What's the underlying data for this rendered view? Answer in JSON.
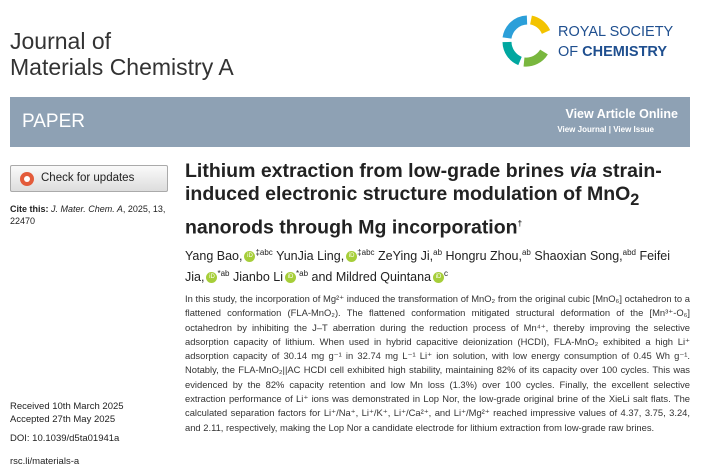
{
  "header": {
    "journal_line1": "Journal of",
    "journal_line2": "Materials Chemistry A",
    "publisher_line1": "ROYAL SOCIETY",
    "publisher_of": "OF",
    "publisher_chem": "CHEMISTRY"
  },
  "banner": {
    "section": "PAPER",
    "view_article": "View Article Online",
    "view_journal": "View Journal",
    "separator": "|",
    "view_issue": "View Issue"
  },
  "sidebar": {
    "check_updates": "Check for updates",
    "cite_label": "Cite this:",
    "cite_journal": "J. Mater. Chem. A",
    "cite_rest": ", 2025, 13, 22470",
    "received": "Received 10th March 2025",
    "accepted": "Accepted 27th May 2025",
    "doi": "DOI: 10.1039/d5ta01941a",
    "link": "rsc.li/materials-a"
  },
  "article": {
    "title": [
      "Lithium extraction from low-grade brines ",
      "via",
      " strain-induced electronic structure modulation of MnO",
      "2",
      " nanorods through Mg incorporation",
      "†"
    ],
    "authors": [
      {
        "name": "Yang Bao,",
        "orcid": "iD",
        "affil": "‡abc"
      },
      {
        "name": "YunJia Ling,",
        "orcid": "iD",
        "affil": "‡abc"
      },
      {
        "name": "ZeYing Ji,",
        "affil": "ab"
      },
      {
        "name": "Hongru Zhou,",
        "affil": "ab"
      },
      {
        "name": "Shaoxian Song,",
        "affil": "abd"
      },
      {
        "name": "Feifei Jia,",
        "orcid": "iD",
        "affil": "*ab"
      },
      {
        "name": "Jianbo Li",
        "orcid": "iD",
        "affil": "*ab"
      },
      {
        "name": "and Mildred Quintana",
        "orcid": "iD",
        "affil": "c"
      }
    ],
    "abstract": "In this study, the incorporation of Mg²⁺ induced the transformation of MnO₂ from the original cubic [MnO₆] octahedron to a flattened conformation (FLA-MnO₂). The flattened conformation mitigated structural deformation of the [Mn³⁺-O₆] octahedron by inhibiting the J–T aberration during the reduction process of Mn⁴⁺, thereby improving the selective adsorption capacity of lithium. When used in hybrid capacitive deionization (HCDI), FLA-MnO₂ exhibited a high Li⁺ adsorption capacity of 30.14 mg g⁻¹ in 32.74 mg L⁻¹ Li⁺ ion solution, with low energy consumption of 0.45 Wh g⁻¹. Notably, the FLA-MnO₂||AC HCDI cell exhibited high stability, maintaining 82% of its capacity over 100 cycles. This was evidenced by the 82% capacity retention and low Mn loss (1.3%) over 100 cycles. Finally, the excellent selective extraction performance of Li⁺ ions was demonstrated in Lop Nor, the low-grade original brine of the XieLi salt flats. The calculated separation factors for Li⁺/Na⁺, Li⁺/K⁺, Li⁺/Ca²⁺, and Li⁺/Mg²⁺ reached impressive values of 4.37, 3.75, 3.24, and 2.11, respectively, making the Lop Nor a candidate electrode for lithium extraction from low-grade raw brines."
  }
}
